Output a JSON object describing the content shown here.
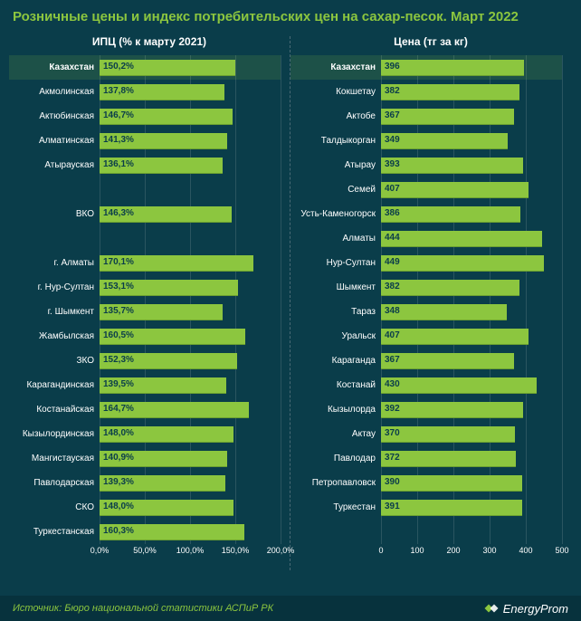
{
  "title": "Розничные цены и индекс потребительских цен на сахар-песок. Март 2022",
  "source": "Источник: Бюро национальной статистики АСПиР РК",
  "logo_text": "EnergyProm",
  "colors": {
    "background": "#0a3d4a",
    "bar": "#8cc63f",
    "grid": "#2a5560",
    "text": "#ffffff",
    "accent": "#8cc63f"
  },
  "left": {
    "header": "ИПЦ (% к марту 2021)",
    "xmax": 200,
    "ticks": [
      "0,0%",
      "50,0%",
      "100,0%",
      "150,0%",
      "200,0%"
    ],
    "tick_vals": [
      0,
      50,
      100,
      150,
      200
    ],
    "rows": [
      {
        "cat": "Казахстан",
        "val": 150.2,
        "label": "150,2%",
        "hl": true
      },
      {
        "cat": "Акмолинская",
        "val": 137.8,
        "label": "137,8%"
      },
      {
        "cat": "Актюбинская",
        "val": 146.7,
        "label": "146,7%"
      },
      {
        "cat": "Алматинская",
        "val": 141.3,
        "label": "141,3%"
      },
      {
        "cat": "Атырауская",
        "val": 136.1,
        "label": "136,1%"
      },
      {
        "cat": "",
        "val": 0,
        "label": "",
        "empty": true
      },
      {
        "cat": "ВКО",
        "val": 146.3,
        "label": "146,3%"
      },
      {
        "cat": "",
        "val": 0,
        "label": "",
        "empty": true
      },
      {
        "cat": "г. Алматы",
        "val": 170.1,
        "label": "170,1%"
      },
      {
        "cat": "г. Нур-Султан",
        "val": 153.1,
        "label": "153,1%"
      },
      {
        "cat": "г. Шымкент",
        "val": 135.7,
        "label": "135,7%"
      },
      {
        "cat": "Жамбылская",
        "val": 160.5,
        "label": "160,5%"
      },
      {
        "cat": "ЗКО",
        "val": 152.3,
        "label": "152,3%"
      },
      {
        "cat": "Карагандинская",
        "val": 139.5,
        "label": "139,5%"
      },
      {
        "cat": "Костанайская",
        "val": 164.7,
        "label": "164,7%"
      },
      {
        "cat": "Кызылординская",
        "val": 148.0,
        "label": "148,0%"
      },
      {
        "cat": "Мангистауская",
        "val": 140.9,
        "label": "140,9%"
      },
      {
        "cat": "Павлодарская",
        "val": 139.3,
        "label": "139,3%"
      },
      {
        "cat": "СКО",
        "val": 148.0,
        "label": "148,0%"
      },
      {
        "cat": "Туркестанская",
        "val": 160.3,
        "label": "160,3%"
      }
    ]
  },
  "right": {
    "header": "Цена (тг за кг)",
    "xmax": 500,
    "ticks": [
      "0",
      "100",
      "200",
      "300",
      "400",
      "500"
    ],
    "tick_vals": [
      0,
      100,
      200,
      300,
      400,
      500
    ],
    "rows": [
      {
        "cat": "Казахстан",
        "val": 396,
        "label": "396",
        "hl": true
      },
      {
        "cat": "Кокшетау",
        "val": 382,
        "label": "382"
      },
      {
        "cat": "Актобе",
        "val": 367,
        "label": "367"
      },
      {
        "cat": "Талдыкорган",
        "val": 349,
        "label": "349"
      },
      {
        "cat": "Атырау",
        "val": 393,
        "label": "393"
      },
      {
        "cat": "Семей",
        "val": 407,
        "label": "407"
      },
      {
        "cat": "Усть-Каменогорск",
        "val": 386,
        "label": "386"
      },
      {
        "cat": "Алматы",
        "val": 444,
        "label": "444"
      },
      {
        "cat": "Нур-Султан",
        "val": 449,
        "label": "449"
      },
      {
        "cat": "Шымкент",
        "val": 382,
        "label": "382"
      },
      {
        "cat": "Тараз",
        "val": 348,
        "label": "348"
      },
      {
        "cat": "Уральск",
        "val": 407,
        "label": "407"
      },
      {
        "cat": "Караганда",
        "val": 367,
        "label": "367"
      },
      {
        "cat": "Костанай",
        "val": 430,
        "label": "430"
      },
      {
        "cat": "Кызылорда",
        "val": 392,
        "label": "392"
      },
      {
        "cat": "Актау",
        "val": 370,
        "label": "370"
      },
      {
        "cat": "Павлодар",
        "val": 372,
        "label": "372"
      },
      {
        "cat": "Петропавловск",
        "val": 390,
        "label": "390"
      },
      {
        "cat": "Туркестан",
        "val": 391,
        "label": "391"
      }
    ]
  }
}
